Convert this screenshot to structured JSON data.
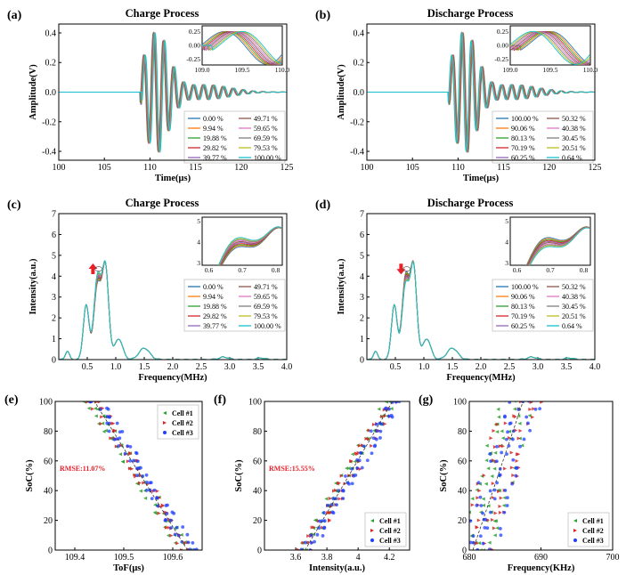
{
  "colors": {
    "charge": [
      "#1f77b4",
      "#ff7f0e",
      "#2ca02c",
      "#d62728",
      "#9467bd",
      "#8c564b",
      "#e377c2",
      "#7f7f7f",
      "#bcbd22",
      "#17becf"
    ],
    "cells": [
      "#2ca02c",
      "#d62728",
      "#1f3fff"
    ],
    "rmse": "#e8202a",
    "arrow": "#e8202a"
  },
  "chart_data": [
    {
      "id": "a",
      "label": "(a)",
      "type": "line",
      "title": "Charge Process",
      "xlabel": "Time(μs)",
      "ylabel": "Amplitude(V)",
      "xlim": [
        100,
        125
      ],
      "ylim": [
        -0.46,
        0.46
      ],
      "xticks": [
        "100",
        "105",
        "110",
        "115",
        "120",
        "125"
      ],
      "yticks": [
        "-0.4",
        "-0.2",
        "0.0",
        "0.2",
        "0.4"
      ],
      "legend": [
        "0.00 %",
        "9.94 %",
        "19.88 %",
        "29.82 %",
        "39.77 %",
        "49.71 %",
        "59.65 %",
        "69.59 %",
        "79.53 %",
        "100.00 %"
      ],
      "inset": {
        "xticks": [
          "109.0",
          "109.5",
          "110.0"
        ],
        "yticks": [
          "0.25",
          "0.00",
          "-0.25"
        ],
        "xlim": [
          109.0,
          110.0
        ],
        "ylim": [
          -0.35,
          0.35
        ]
      }
    },
    {
      "id": "b",
      "label": "(b)",
      "type": "line",
      "title": "Discharge Process",
      "xlabel": "Time(μs)",
      "ylabel": "Amplitude(V)",
      "xlim": [
        100,
        125
      ],
      "ylim": [
        -0.46,
        0.46
      ],
      "xticks": [
        "100",
        "105",
        "110",
        "115",
        "120",
        "125"
      ],
      "yticks": [
        "-0.4",
        "-0.2",
        "0.0",
        "0.2",
        "0.4"
      ],
      "legend": [
        "100.00 %",
        "90.06 %",
        "80.13 %",
        "70.19 %",
        "60.25 %",
        "50.32 %",
        "40.38 %",
        "30.45 %",
        "20.51 %",
        "0.64 %"
      ],
      "inset": {
        "xticks": [
          "109.0",
          "109.5",
          "110.0"
        ],
        "yticks": [
          "0.25",
          "0.00",
          "-0.25"
        ],
        "xlim": [
          109.0,
          110.0
        ],
        "ylim": [
          -0.35,
          0.35
        ]
      }
    },
    {
      "id": "c",
      "label": "(c)",
      "type": "line",
      "title": "Charge Process",
      "xlabel": "Frequency(MHz)",
      "ylabel": "Intensity(a.u.)",
      "xlim": [
        0,
        4.0
      ],
      "ylim": [
        0,
        7
      ],
      "xticks": [
        "0.5",
        "1.0",
        "1.5",
        "2.0",
        "2.5",
        "3.0",
        "3.5",
        "4.0"
      ],
      "yticks": [
        "0",
        "1",
        "2",
        "3",
        "4",
        "5",
        "6",
        "7"
      ],
      "legend": [
        "0.00 %",
        "9.94 %",
        "19.88 %",
        "29.82 %",
        "39.77 %",
        "49.71 %",
        "59.65 %",
        "69.59 %",
        "79.53 %",
        "100.00 %"
      ],
      "arrow": "up",
      "inset": {
        "xticks": [
          "0.6",
          "0.7",
          "0.8"
        ],
        "yticks": [
          "3",
          "4",
          "5"
        ],
        "xlim": [
          0.58,
          0.82
        ],
        "ylim": [
          2.9,
          5.2
        ]
      }
    },
    {
      "id": "d",
      "label": "(d)",
      "type": "line",
      "title": "Discharge Process",
      "xlabel": "Frequency(MHz)",
      "ylabel": "Intensity(a.u.)",
      "xlim": [
        0,
        4.0
      ],
      "ylim": [
        0,
        7
      ],
      "xticks": [
        "0.5",
        "1.0",
        "1.5",
        "2.0",
        "2.5",
        "3.0",
        "3.5",
        "4.0"
      ],
      "yticks": [
        "0",
        "1",
        "2",
        "3",
        "4",
        "5",
        "6",
        "7"
      ],
      "legend": [
        "100.00 %",
        "90.06 %",
        "80.13 %",
        "70.19 %",
        "60.25 %",
        "50.32 %",
        "40.38 %",
        "30.45 %",
        "20.51 %",
        "0.64 %"
      ],
      "arrow": "down",
      "inset": {
        "xticks": [
          "0.6",
          "0.7",
          "0.8"
        ],
        "yticks": [
          "3",
          "4",
          "5"
        ],
        "xlim": [
          0.58,
          0.82
        ],
        "ylim": [
          2.9,
          5.2
        ]
      }
    },
    {
      "id": "e",
      "label": "(e)",
      "type": "scatter",
      "xlabel": "ToF(μs)",
      "ylabel": "SoC(%)",
      "xlim": [
        109.36,
        109.66
      ],
      "ylim": [
        0,
        100
      ],
      "xticks": [
        109.4,
        109.5,
        109.6
      ],
      "yticks": [
        0,
        20,
        40,
        60,
        80,
        100
      ],
      "legend": [
        "Cell #1",
        "Cell #2",
        "Cell #3"
      ],
      "legend_loc": "top-right",
      "annotation": "RMSE:11.07%",
      "trend": {
        "x_at_soc0": 109.63,
        "x_at_soc100": 109.44
      }
    },
    {
      "id": "f",
      "label": "(f)",
      "type": "scatter",
      "xlabel": "Intensity(a.u.)",
      "ylabel": "SoC(%)",
      "xlim": [
        3.4,
        4.33
      ],
      "ylim": [
        0,
        100
      ],
      "xticks": [
        3.6,
        3.8,
        4.0,
        4.2
      ],
      "yticks": [
        0,
        20,
        40,
        60,
        80,
        100
      ],
      "legend": [
        "Cell #1",
        "Cell #2",
        "Cell #3"
      ],
      "legend_loc": "bottom-right",
      "annotation": "RMSE:15.55%",
      "trend": {
        "x_at_soc0": 3.66,
        "x_at_soc100": 4.22
      }
    },
    {
      "id": "g",
      "label": "(g)",
      "type": "scatter",
      "xlabel": "Frequency(KHz)",
      "ylabel": "SoC(%)",
      "xlim": [
        680,
        700
      ],
      "ylim": [
        0,
        100
      ],
      "xticks": [
        680,
        690,
        700
      ],
      "yticks": [
        0,
        20,
        40,
        60,
        80,
        100
      ],
      "legend": [
        "Cell #1",
        "Cell #2",
        "Cell #3"
      ],
      "legend_loc": "bottom-right",
      "trend": {
        "x_at_soc0": 680.5,
        "x_at_soc100": 687.5
      }
    }
  ]
}
